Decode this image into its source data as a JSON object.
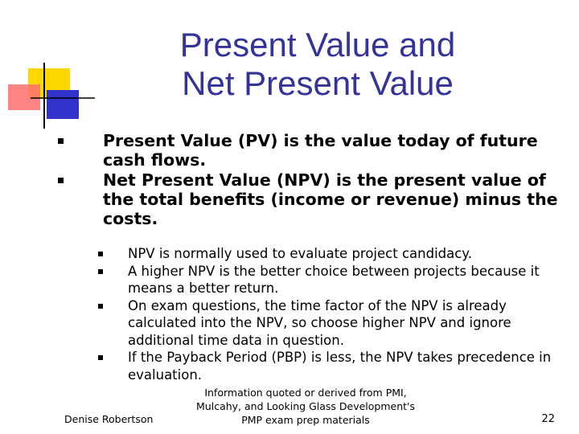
{
  "slide": {
    "title_line1": "Present Value and",
    "title_line2": "Net Present Value",
    "bullets": [
      "Present Value (PV) is the value today of future cash flows.",
      "Net Present Value (NPV) is the present value of the total benefits (income or revenue) minus the costs."
    ],
    "sub_bullets": [
      "NPV is normally used to evaluate project candidacy.",
      "A higher NPV is the better choice between projects because it means a better return.",
      "On exam questions, the time factor of the NPV is already calculated into the NPV, so choose higher NPV and ignore additional time data in question.",
      "If the Payback Period (PBP) is less, the NPV takes precedence in evaluation."
    ]
  },
  "footer": {
    "author": "Denise Robertson",
    "source_line1": "Information quoted or derived from PMI,",
    "source_line2": "Mulcahy, and Looking Glass Development's",
    "source_line3": "PMP exam prep materials",
    "page_number": "22"
  },
  "colors": {
    "title": "#333399",
    "deco_yellow": "#FFD700",
    "deco_red": "#FF6666",
    "deco_blue": "#3333CC"
  }
}
